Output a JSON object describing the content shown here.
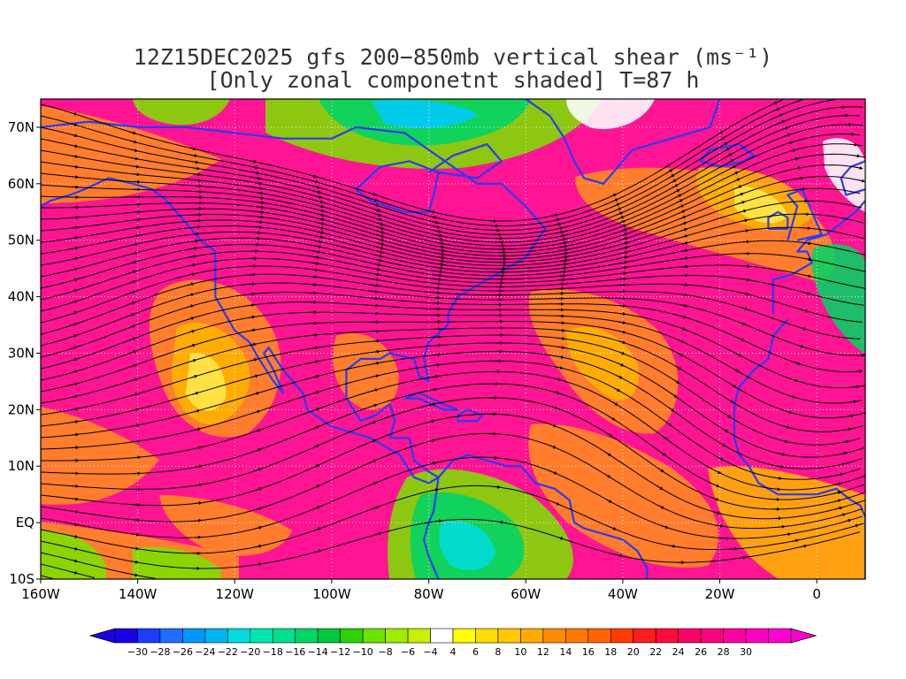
{
  "title": {
    "line1": "12Z15DEC2025 gfs 200−850mb vertical shear (ms⁻¹)",
    "line2": "[Only zonal componetnt shaded] T=87 h"
  },
  "map": {
    "lon_range": [
      -160,
      10
    ],
    "lat_range": [
      -10,
      75
    ],
    "lat_ticks": [
      {
        "value": 70,
        "label": "70N"
      },
      {
        "value": 60,
        "label": "60N"
      },
      {
        "value": 50,
        "label": "50N"
      },
      {
        "value": 40,
        "label": "40N"
      },
      {
        "value": 30,
        "label": "30N"
      },
      {
        "value": 20,
        "label": "20N"
      },
      {
        "value": 10,
        "label": "10N"
      },
      {
        "value": 0,
        "label": "EQ"
      },
      {
        "value": -10,
        "label": "10S"
      }
    ],
    "lon_ticks": [
      {
        "value": -160,
        "label": "160W"
      },
      {
        "value": -140,
        "label": "140W"
      },
      {
        "value": -120,
        "label": "120W"
      },
      {
        "value": -100,
        "label": "100W"
      },
      {
        "value": -80,
        "label": "80W"
      },
      {
        "value": -60,
        "label": "60W"
      },
      {
        "value": -40,
        "label": "40W"
      },
      {
        "value": -20,
        "label": "20W"
      },
      {
        "value": 0,
        "label": "0"
      }
    ]
  },
  "colorbar": {
    "labels": [
      "−30",
      "−28",
      "−26",
      "−24",
      "−22",
      "−20",
      "−18",
      "−16",
      "−14",
      "−12",
      "−10",
      "−8",
      "−6",
      "−4",
      "4",
      "6",
      "8",
      "10",
      "12",
      "14",
      "16",
      "18",
      "20",
      "22",
      "24",
      "26",
      "28",
      "30"
    ],
    "colors": [
      "#1a00e6",
      "#1e3cff",
      "#1e6eff",
      "#0096ff",
      "#00b4f0",
      "#00dcdc",
      "#00e6b0",
      "#00e090",
      "#00d464",
      "#00c83c",
      "#2dd200",
      "#6ee100",
      "#a0eb00",
      "#c8f000",
      "#ffffff",
      "#ffff00",
      "#ffdc00",
      "#ffc800",
      "#ffaa00",
      "#ff8c00",
      "#ff7800",
      "#ff6400",
      "#ff3c00",
      "#ff1e1e",
      "#ff0a3c",
      "#ff0064",
      "#ff0080",
      "#ff00a0",
      "#ff00c0",
      "#ff00d2"
    ]
  },
  "colors": {
    "background_shear": "#ff1493",
    "coastline": "#2a3cf0",
    "streamline": "#000000",
    "contour": "#a020c8",
    "gridline": "#ffffff"
  }
}
